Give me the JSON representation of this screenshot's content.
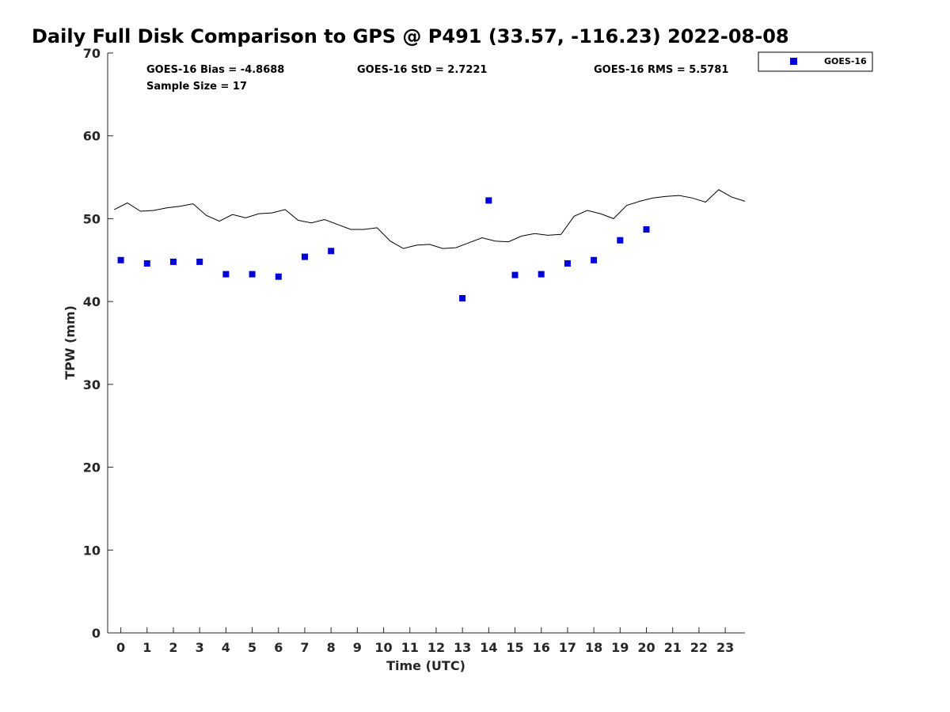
{
  "chart_data": {
    "type": "scatter",
    "title": "Daily Full Disk Comparison to GPS @ P491 (33.57, -116.23) 2022-08-08",
    "xlabel": "Time (UTC)",
    "ylabel": "TPW (mm)",
    "xlim": [
      -0.5,
      23.75
    ],
    "ylim": [
      0,
      70
    ],
    "x_ticks": [
      0,
      1,
      2,
      3,
      4,
      5,
      6,
      7,
      8,
      9,
      10,
      11,
      12,
      13,
      14,
      15,
      16,
      17,
      18,
      19,
      20,
      21,
      22,
      23
    ],
    "y_ticks": [
      0,
      10,
      20,
      30,
      40,
      50,
      60,
      70
    ],
    "stats": {
      "bias": "GOES-16 Bias = -4.8688",
      "std": "GOES-16 StD = 2.7221",
      "rms": "GOES-16 RMS = 5.5781",
      "sample": "Sample Size = 17"
    },
    "legend": {
      "position": "top-right-outside",
      "entries": [
        "GOES-16"
      ]
    },
    "colors": {
      "goes": "#0000d9",
      "gps_line": "#000000"
    },
    "series": [
      {
        "name": "GOES-16",
        "type": "scatter",
        "x": [
          0,
          1,
          2,
          3,
          4,
          5,
          6,
          7,
          8,
          13,
          14,
          15,
          16,
          17,
          18,
          19,
          20
        ],
        "y": [
          45.0,
          44.6,
          44.8,
          44.8,
          43.3,
          43.3,
          43.0,
          45.4,
          46.1,
          40.4,
          52.2,
          43.2,
          43.3,
          44.6,
          45.0,
          47.4,
          48.7
        ]
      },
      {
        "type": "line",
        "x": [
          -0.25,
          0.25,
          0.75,
          1.25,
          1.75,
          2.25,
          2.75,
          3.25,
          3.75,
          4.25,
          4.75,
          5.25,
          5.75,
          6.25,
          6.75,
          7.25,
          7.75,
          8.25,
          8.75,
          9.25,
          9.75,
          10.25,
          10.75,
          11.25,
          11.75,
          12.25,
          12.75,
          13.25,
          13.75,
          14.25,
          14.75,
          15.25,
          15.75,
          16.25,
          16.75,
          17.25,
          17.75,
          18.25,
          18.75,
          19.25,
          19.75,
          20.25,
          20.75,
          21.25,
          21.75,
          22.25,
          22.75,
          23.25,
          23.75
        ],
        "y": [
          51.1,
          51.9,
          50.9,
          51.0,
          51.3,
          51.5,
          51.8,
          50.4,
          49.7,
          50.5,
          50.1,
          50.6,
          50.7,
          51.1,
          49.8,
          49.5,
          49.9,
          49.3,
          48.7,
          48.7,
          48.9,
          47.3,
          46.4,
          46.8,
          46.9,
          46.4,
          46.5,
          47.1,
          47.7,
          47.3,
          47.2,
          47.9,
          48.2,
          48.0,
          48.1,
          50.3,
          51.0,
          50.6,
          50.0,
          51.6,
          52.1,
          52.5,
          52.7,
          52.8,
          52.5,
          52.0,
          53.5,
          52.6,
          52.1
        ]
      }
    ]
  }
}
